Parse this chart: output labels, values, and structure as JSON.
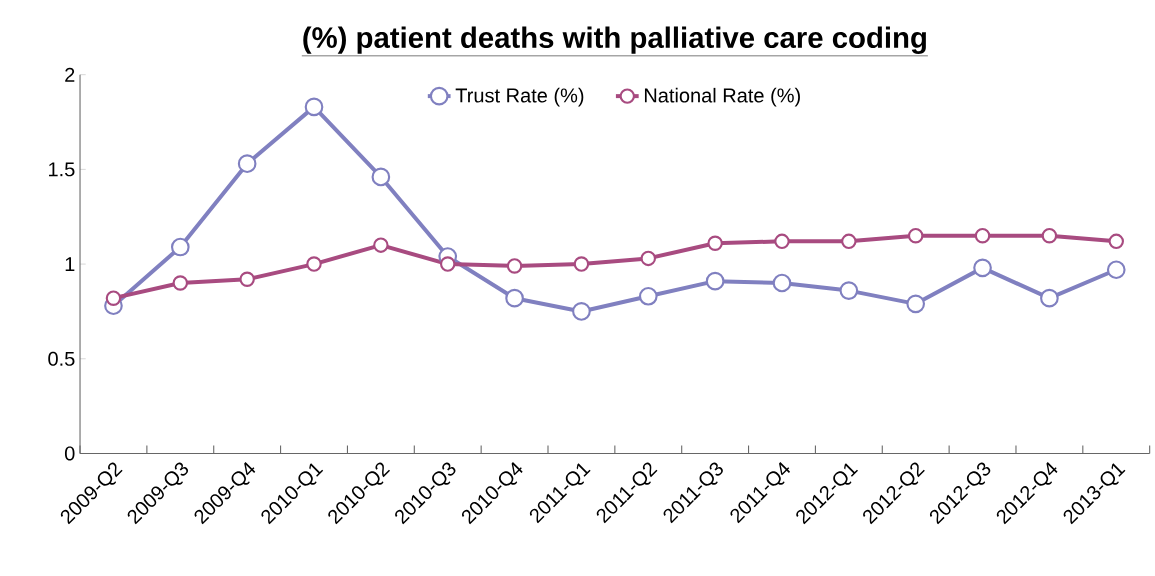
{
  "chart_data": {
    "type": "line",
    "title": "(%) patient deaths with palliative care coding",
    "categories": [
      "2009-Q2",
      "2009-Q3",
      "2009-Q4",
      "2010-Q1",
      "2010-Q2",
      "2010-Q3",
      "2010-Q4",
      "2011-Q1",
      "2011-Q2",
      "2011-Q3",
      "2011-Q4",
      "2012-Q1",
      "2012-Q2",
      "2012-Q3",
      "2012-Q4",
      "2013-Q1"
    ],
    "series": [
      {
        "name": "Trust Rate (%)",
        "color": "#8080c0",
        "values": [
          0.78,
          1.09,
          1.53,
          1.83,
          1.46,
          1.04,
          0.82,
          0.75,
          0.83,
          0.91,
          0.9,
          0.86,
          0.79,
          0.98,
          0.82,
          0.97
        ]
      },
      {
        "name": "National Rate (%)",
        "color": "#a84b80",
        "values": [
          0.82,
          0.9,
          0.92,
          1.0,
          1.1,
          1.0,
          0.99,
          1.0,
          1.03,
          1.11,
          1.12,
          1.12,
          1.15,
          1.15,
          1.15,
          1.12
        ]
      }
    ],
    "ylim": [
      0,
      2
    ],
    "yticks": [
      0,
      0.5,
      1,
      1.5,
      2
    ],
    "legend": "top",
    "marker": "circle",
    "line_style": "solid"
  }
}
